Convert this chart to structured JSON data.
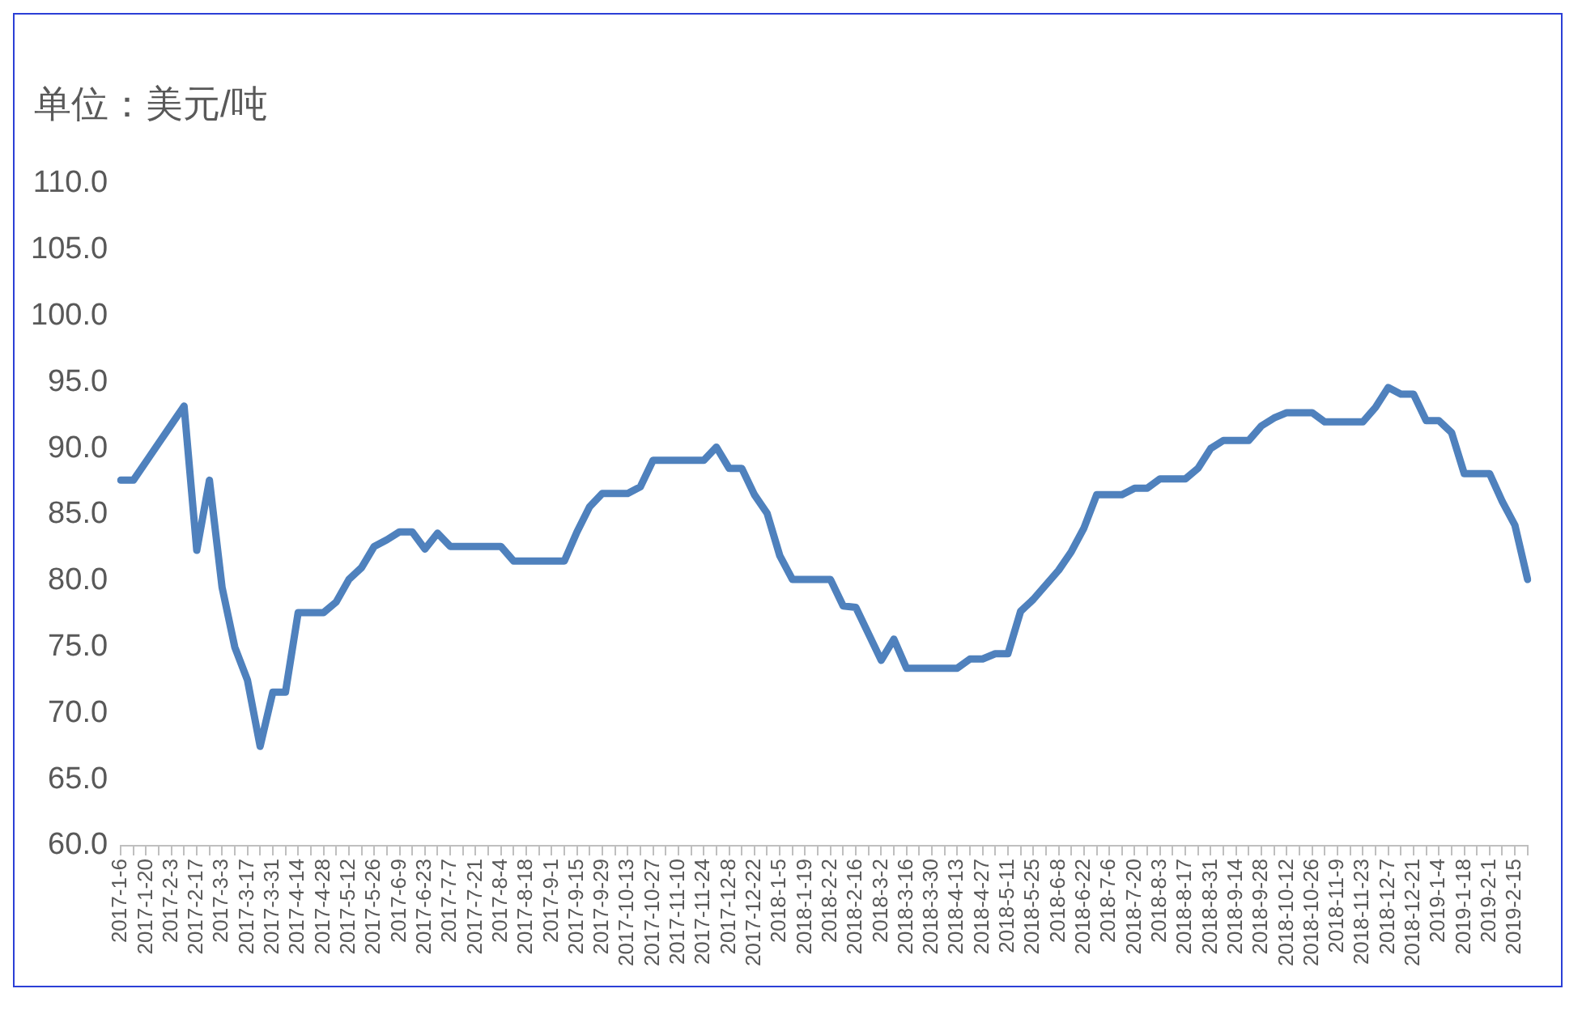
{
  "chart_data": {
    "type": "line",
    "ylabel": "单位：美元/吨",
    "categories": [
      "2017-1-6",
      null,
      "2017-1-20",
      null,
      "2017-2-3",
      null,
      "2017-2-17",
      null,
      "2017-3-3",
      null,
      "2017-3-17",
      null,
      "2017-3-31",
      null,
      "2017-4-14",
      null,
      "2017-4-28",
      null,
      "2017-5-12",
      null,
      "2017-5-26",
      null,
      "2017-6-9",
      null,
      "2017-6-23",
      null,
      "2017-7-7",
      null,
      "2017-7-21",
      null,
      "2017-8-4",
      null,
      "2017-8-18",
      null,
      "2017-9-1",
      null,
      "2017-9-15",
      null,
      "2017-9-29",
      null,
      "2017-10-13",
      null,
      "2017-10-27",
      null,
      "2017-11-10",
      null,
      "2017-11-24",
      null,
      "2017-12-8",
      null,
      "2017-12-22",
      null,
      "2018-1-5",
      null,
      "2018-1-19",
      null,
      "2018-2-2",
      null,
      "2018-2-16",
      null,
      "2018-3-2",
      null,
      "2018-3-16",
      null,
      "2018-3-30",
      null,
      "2018-4-13",
      null,
      "2018-4-27",
      null,
      "2018-5-11",
      null,
      "2018-5-25",
      null,
      "2018-6-8",
      null,
      "2018-6-22",
      null,
      "2018-7-6",
      null,
      "2018-7-20",
      null,
      "2018-8-3",
      null,
      "2018-8-17",
      null,
      "2018-8-31",
      null,
      "2018-9-14",
      null,
      "2018-9-28",
      null,
      "2018-10-12",
      null,
      "2018-10-26",
      null,
      "2018-11-9",
      null,
      "2018-11-23",
      null,
      "2018-12-7",
      null,
      "2018-12-21",
      null,
      "2019-1-4",
      null,
      "2019-1-18",
      null,
      "2019-2-1",
      null,
      "2019-2-15",
      null
    ],
    "series": [
      {
        "color": "#4f81bd",
        "values": [
          87.6,
          87.6,
          89.0,
          90.4,
          91.8,
          93.2,
          82.3,
          87.6,
          79.5,
          75.0,
          72.5,
          67.5,
          71.6,
          71.6,
          77.6,
          77.6,
          77.6,
          78.4,
          80.1,
          81.0,
          82.6,
          83.1,
          83.7,
          83.7,
          82.4,
          83.6,
          82.6,
          82.6,
          82.6,
          82.6,
          82.6,
          81.5,
          81.5,
          81.5,
          81.5,
          81.5,
          83.7,
          85.6,
          86.6,
          86.6,
          86.6,
          87.1,
          89.1,
          89.1,
          89.1,
          89.1,
          89.1,
          90.1,
          88.5,
          88.5,
          86.5,
          85.1,
          81.9,
          80.1,
          80.1,
          80.1,
          80.1,
          78.1,
          78.0,
          76.0,
          74.0,
          75.6,
          73.4,
          73.4,
          73.4,
          73.4,
          73.4,
          74.1,
          74.1,
          74.5,
          74.5,
          77.7,
          78.6,
          79.7,
          80.8,
          82.2,
          84.0,
          86.5,
          86.5,
          86.5,
          87.0,
          87.0,
          87.7,
          87.7,
          87.7,
          88.5,
          90.0,
          90.6,
          90.6,
          90.6,
          91.7,
          92.3,
          92.7,
          92.7,
          92.7,
          92.0,
          92.0,
          92.0,
          92.0,
          93.1,
          94.6,
          94.1,
          94.1,
          92.1,
          92.1,
          91.2,
          88.1,
          88.1,
          88.1,
          86.0,
          84.2,
          80.1
        ]
      }
    ],
    "ylim": [
      60,
      110
    ],
    "yticks": [
      {
        "value": 60,
        "label": "60.0"
      },
      {
        "value": 65,
        "label": "65.0"
      },
      {
        "value": 70,
        "label": "70.0"
      },
      {
        "value": 75,
        "label": "75.0"
      },
      {
        "value": 80,
        "label": "80.0"
      },
      {
        "value": 85,
        "label": "85.0"
      },
      {
        "value": 90,
        "label": "90.0"
      },
      {
        "value": 95,
        "label": "95.0"
      },
      {
        "value": 100,
        "label": "100.0"
      },
      {
        "value": 105,
        "label": "105.0"
      },
      {
        "value": 110,
        "label": "110.0"
      }
    ],
    "grid": false,
    "legend": false,
    "marker": "none",
    "line_style": "solid"
  }
}
